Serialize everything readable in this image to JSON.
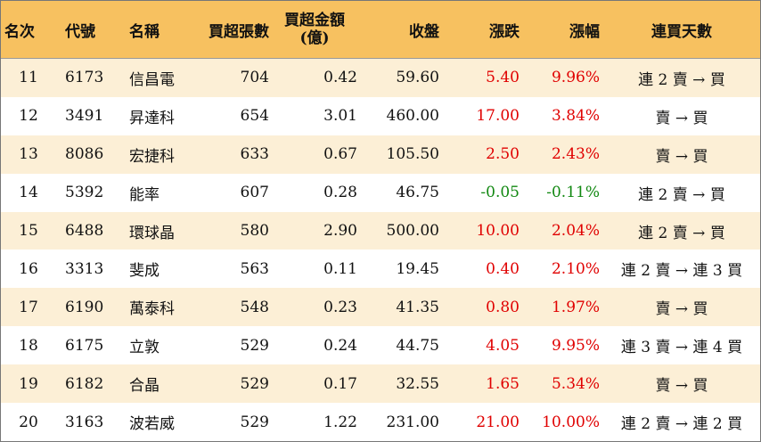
{
  "headers": {
    "rank": "名次",
    "code": "代號",
    "name": "名稱",
    "net_buy_lots": "買超張數",
    "net_buy_amount_line1": "買超金額",
    "net_buy_amount_line2": "(億)",
    "close": "收盤",
    "change": "漲跌",
    "change_pct": "漲幅",
    "consecutive_days": "連買天數"
  },
  "rows": [
    {
      "rank": "11",
      "code": "6173",
      "name": "信昌電",
      "lots": "704",
      "amount": "0.42",
      "close": "59.60",
      "change": "5.40",
      "pct": "9.96%",
      "days": "連 2 賣 → 買",
      "dir": "up"
    },
    {
      "rank": "12",
      "code": "3491",
      "name": "昇達科",
      "lots": "654",
      "amount": "3.01",
      "close": "460.00",
      "change": "17.00",
      "pct": "3.84%",
      "days": "賣 → 買",
      "dir": "up"
    },
    {
      "rank": "13",
      "code": "8086",
      "name": "宏捷科",
      "lots": "633",
      "amount": "0.67",
      "close": "105.50",
      "change": "2.50",
      "pct": "2.43%",
      "days": "賣 → 買",
      "dir": "up"
    },
    {
      "rank": "14",
      "code": "5392",
      "name": "能率",
      "lots": "607",
      "amount": "0.28",
      "close": "46.75",
      "change": "-0.05",
      "pct": "-0.11%",
      "days": "連 2 賣 → 買",
      "dir": "down"
    },
    {
      "rank": "15",
      "code": "6488",
      "name": "環球晶",
      "lots": "580",
      "amount": "2.90",
      "close": "500.00",
      "change": "10.00",
      "pct": "2.04%",
      "days": "連 2 賣 → 買",
      "dir": "up"
    },
    {
      "rank": "16",
      "code": "3313",
      "name": "斐成",
      "lots": "563",
      "amount": "0.11",
      "close": "19.45",
      "change": "0.40",
      "pct": "2.10%",
      "days": "連 2 賣 → 連 3 買",
      "dir": "up"
    },
    {
      "rank": "17",
      "code": "6190",
      "name": "萬泰科",
      "lots": "548",
      "amount": "0.23",
      "close": "41.35",
      "change": "0.80",
      "pct": "1.97%",
      "days": "賣 → 買",
      "dir": "up"
    },
    {
      "rank": "18",
      "code": "6175",
      "name": "立敦",
      "lots": "529",
      "amount": "0.24",
      "close": "44.75",
      "change": "4.05",
      "pct": "9.95%",
      "days": "連 3 賣 → 連 4 買",
      "dir": "up"
    },
    {
      "rank": "19",
      "code": "6182",
      "name": "合晶",
      "lots": "529",
      "amount": "0.17",
      "close": "32.55",
      "change": "1.65",
      "pct": "5.34%",
      "days": "賣 → 買",
      "dir": "up"
    },
    {
      "rank": "20",
      "code": "3163",
      "name": "波若威",
      "lots": "529",
      "amount": "1.22",
      "close": "231.00",
      "change": "21.00",
      "pct": "10.00%",
      "days": "連 2 賣 → 連 2 買",
      "dir": "up"
    }
  ],
  "colors": {
    "header_bg": "#f7c160",
    "stripe_bg": "#fcefd6",
    "up": "#e00000",
    "down": "#118811"
  }
}
